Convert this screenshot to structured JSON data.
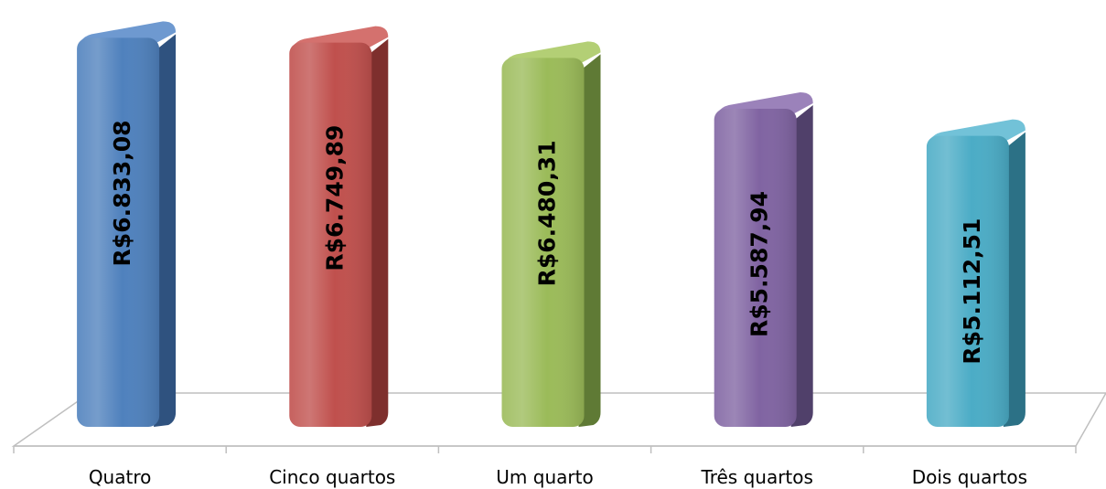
{
  "chart_data": {
    "type": "bar",
    "title": "",
    "xlabel": "",
    "ylabel": "",
    "ylim": [
      0,
      7450
    ],
    "categories": [
      "Quatro",
      "Cinco quartos",
      "Um quarto",
      "Três quartos",
      "Dois quartos"
    ],
    "values": [
      6833.08,
      6749.89,
      6480.31,
      5587.94,
      5112.51
    ],
    "value_labels": [
      "R$6.833,08",
      "R$6.749,89",
      "R$6.480,31",
      "R$5.587,94",
      "R$5.112,51"
    ],
    "colors": [
      "#4F81BD",
      "#C0504D",
      "#9BBB59",
      "#8064A2",
      "#4BACC6"
    ],
    "side_colors": [
      "#2F527F",
      "#7E2F2D",
      "#5F7A35",
      "#50406A",
      "#2C7186"
    ],
    "top_colors": [
      "#6E99D0",
      "#D4716E",
      "#B3CF75",
      "#9B82BA",
      "#72C2D8"
    ],
    "grid": false,
    "legend": "none",
    "style": "3d-cylinder-bars"
  }
}
